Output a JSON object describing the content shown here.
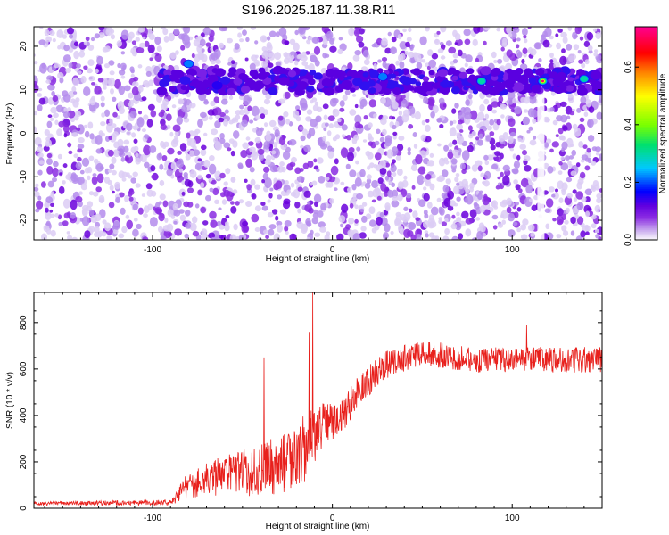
{
  "title": "S196.2025.187.11.38.R11",
  "chart_data": [
    {
      "type": "heatmap",
      "title": "S196.2025.187.11.38.R11",
      "xlabel": "Height of straight line (km)",
      "ylabel": "Frequency (Hz)",
      "xlim": [
        -166,
        150
      ],
      "ylim": [
        -24.5,
        24.5
      ],
      "xticks": [
        -100,
        0,
        100
      ],
      "yticks": [
        -20,
        -10,
        0,
        10,
        20
      ],
      "band": {
        "frequency_hz": 12,
        "x_start": -95,
        "x_end": 150
      },
      "bright_spots": [
        {
          "x": -80,
          "y": 16,
          "level": 0.25
        },
        {
          "x": -64,
          "y": 11,
          "level": 0.15
        },
        {
          "x": -27,
          "y": 12,
          "level": 0.12
        },
        {
          "x": 28,
          "y": 13,
          "level": 0.22
        },
        {
          "x": 83,
          "y": 12,
          "level": 0.3
        },
        {
          "x": 117,
          "y": 12,
          "level": 0.72
        },
        {
          "x": 140,
          "y": 12.5,
          "level": 0.35
        }
      ],
      "colorbar": {
        "label": "Normalized spectral amplitude",
        "range": [
          0,
          0.74
        ],
        "ticks": [
          "0.0",
          "0.2",
          "0.4",
          "0.6"
        ],
        "tick_values": [
          0,
          0.2,
          0.4,
          0.6
        ],
        "colors": [
          "#ffffff",
          "#d0b8f0",
          "#8a2be2",
          "#6000e0",
          "#0000ff",
          "#00c8ff",
          "#00e070",
          "#7aff00",
          "#ffff00",
          "#ff8800",
          "#ff0000",
          "#ff0090"
        ]
      }
    },
    {
      "type": "line",
      "xlabel": "Height of straight line (km)",
      "ylabel": "SNR (10 * v/v)",
      "xlim": [
        -166,
        150
      ],
      "ylim": [
        0,
        930
      ],
      "xticks": [
        -100,
        0,
        100
      ],
      "yticks": [
        0,
        200,
        400,
        600,
        800
      ],
      "color": "#e8201c",
      "envelope": [
        {
          "x": -166,
          "y": 20,
          "noise": 8
        },
        {
          "x": -90,
          "y": 25,
          "noise": 12
        },
        {
          "x": -80,
          "y": 100,
          "noise": 60
        },
        {
          "x": -60,
          "y": 140,
          "noise": 90
        },
        {
          "x": -40,
          "y": 170,
          "noise": 120
        },
        {
          "x": -25,
          "y": 200,
          "noise": 130
        },
        {
          "x": -15,
          "y": 260,
          "noise": 150
        },
        {
          "x": -5,
          "y": 370,
          "noise": 100
        },
        {
          "x": 5,
          "y": 390,
          "noise": 70
        },
        {
          "x": 15,
          "y": 510,
          "noise": 70
        },
        {
          "x": 30,
          "y": 620,
          "noise": 60
        },
        {
          "x": 50,
          "y": 670,
          "noise": 55
        },
        {
          "x": 80,
          "y": 640,
          "noise": 55
        },
        {
          "x": 100,
          "y": 640,
          "noise": 55
        },
        {
          "x": 150,
          "y": 640,
          "noise": 55
        }
      ],
      "spikes": [
        {
          "x": -38,
          "y": 650
        },
        {
          "x": -11,
          "y": 930
        },
        {
          "x": -13,
          "y": 760
        },
        {
          "x": 108,
          "y": 790
        }
      ]
    }
  ]
}
